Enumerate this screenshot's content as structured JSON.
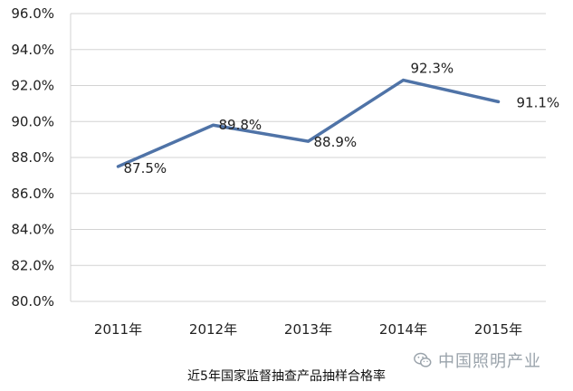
{
  "chart_data": {
    "type": "line",
    "categories": [
      "2011年",
      "2012年",
      "2013年",
      "2014年",
      "2015年"
    ],
    "values": [
      87.5,
      89.8,
      88.9,
      92.3,
      91.1
    ],
    "data_labels": [
      "87.5%",
      "89.8%",
      "88.9%",
      "92.3%",
      "91.1%"
    ],
    "yticks": [
      "80.0%",
      "82.0%",
      "84.0%",
      "86.0%",
      "88.0%",
      "90.0%",
      "92.0%",
      "94.0%",
      "96.0%"
    ],
    "ylim": [
      80,
      96
    ],
    "grid": true,
    "line_color": "#4f73a7",
    "title": "",
    "xlabel": "",
    "ylabel": ""
  },
  "caption": "近5年国家监督抽查产品抽样合格率",
  "watermark": {
    "text": "中国照明产业",
    "icon": "wechat-icon"
  }
}
